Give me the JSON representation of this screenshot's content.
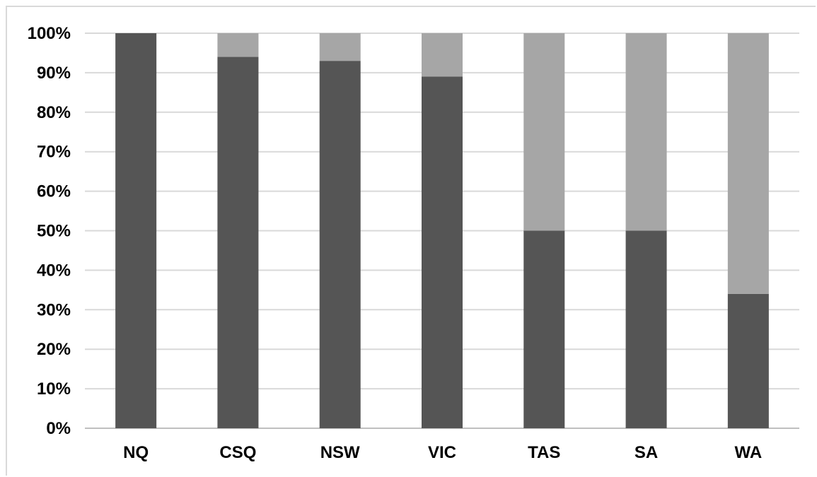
{
  "chart_data": {
    "type": "bar",
    "stacked": true,
    "percent_stacked": true,
    "categories": [
      "NQ",
      "CSQ",
      "NSW",
      "VIC",
      "TAS",
      "SA",
      "WA"
    ],
    "series": [
      {
        "values": [
          100,
          94,
          93,
          89,
          50,
          50,
          34
        ],
        "color": "#555555"
      },
      {
        "values": [
          0,
          6,
          7,
          11,
          50,
          50,
          66
        ],
        "color": "#a6a6a6"
      }
    ],
    "yticks": [
      "0%",
      "10%",
      "20%",
      "30%",
      "40%",
      "50%",
      "60%",
      "70%",
      "80%",
      "90%",
      "100%"
    ],
    "ylim": [
      0,
      100
    ],
    "grid": true,
    "legend": "none"
  }
}
